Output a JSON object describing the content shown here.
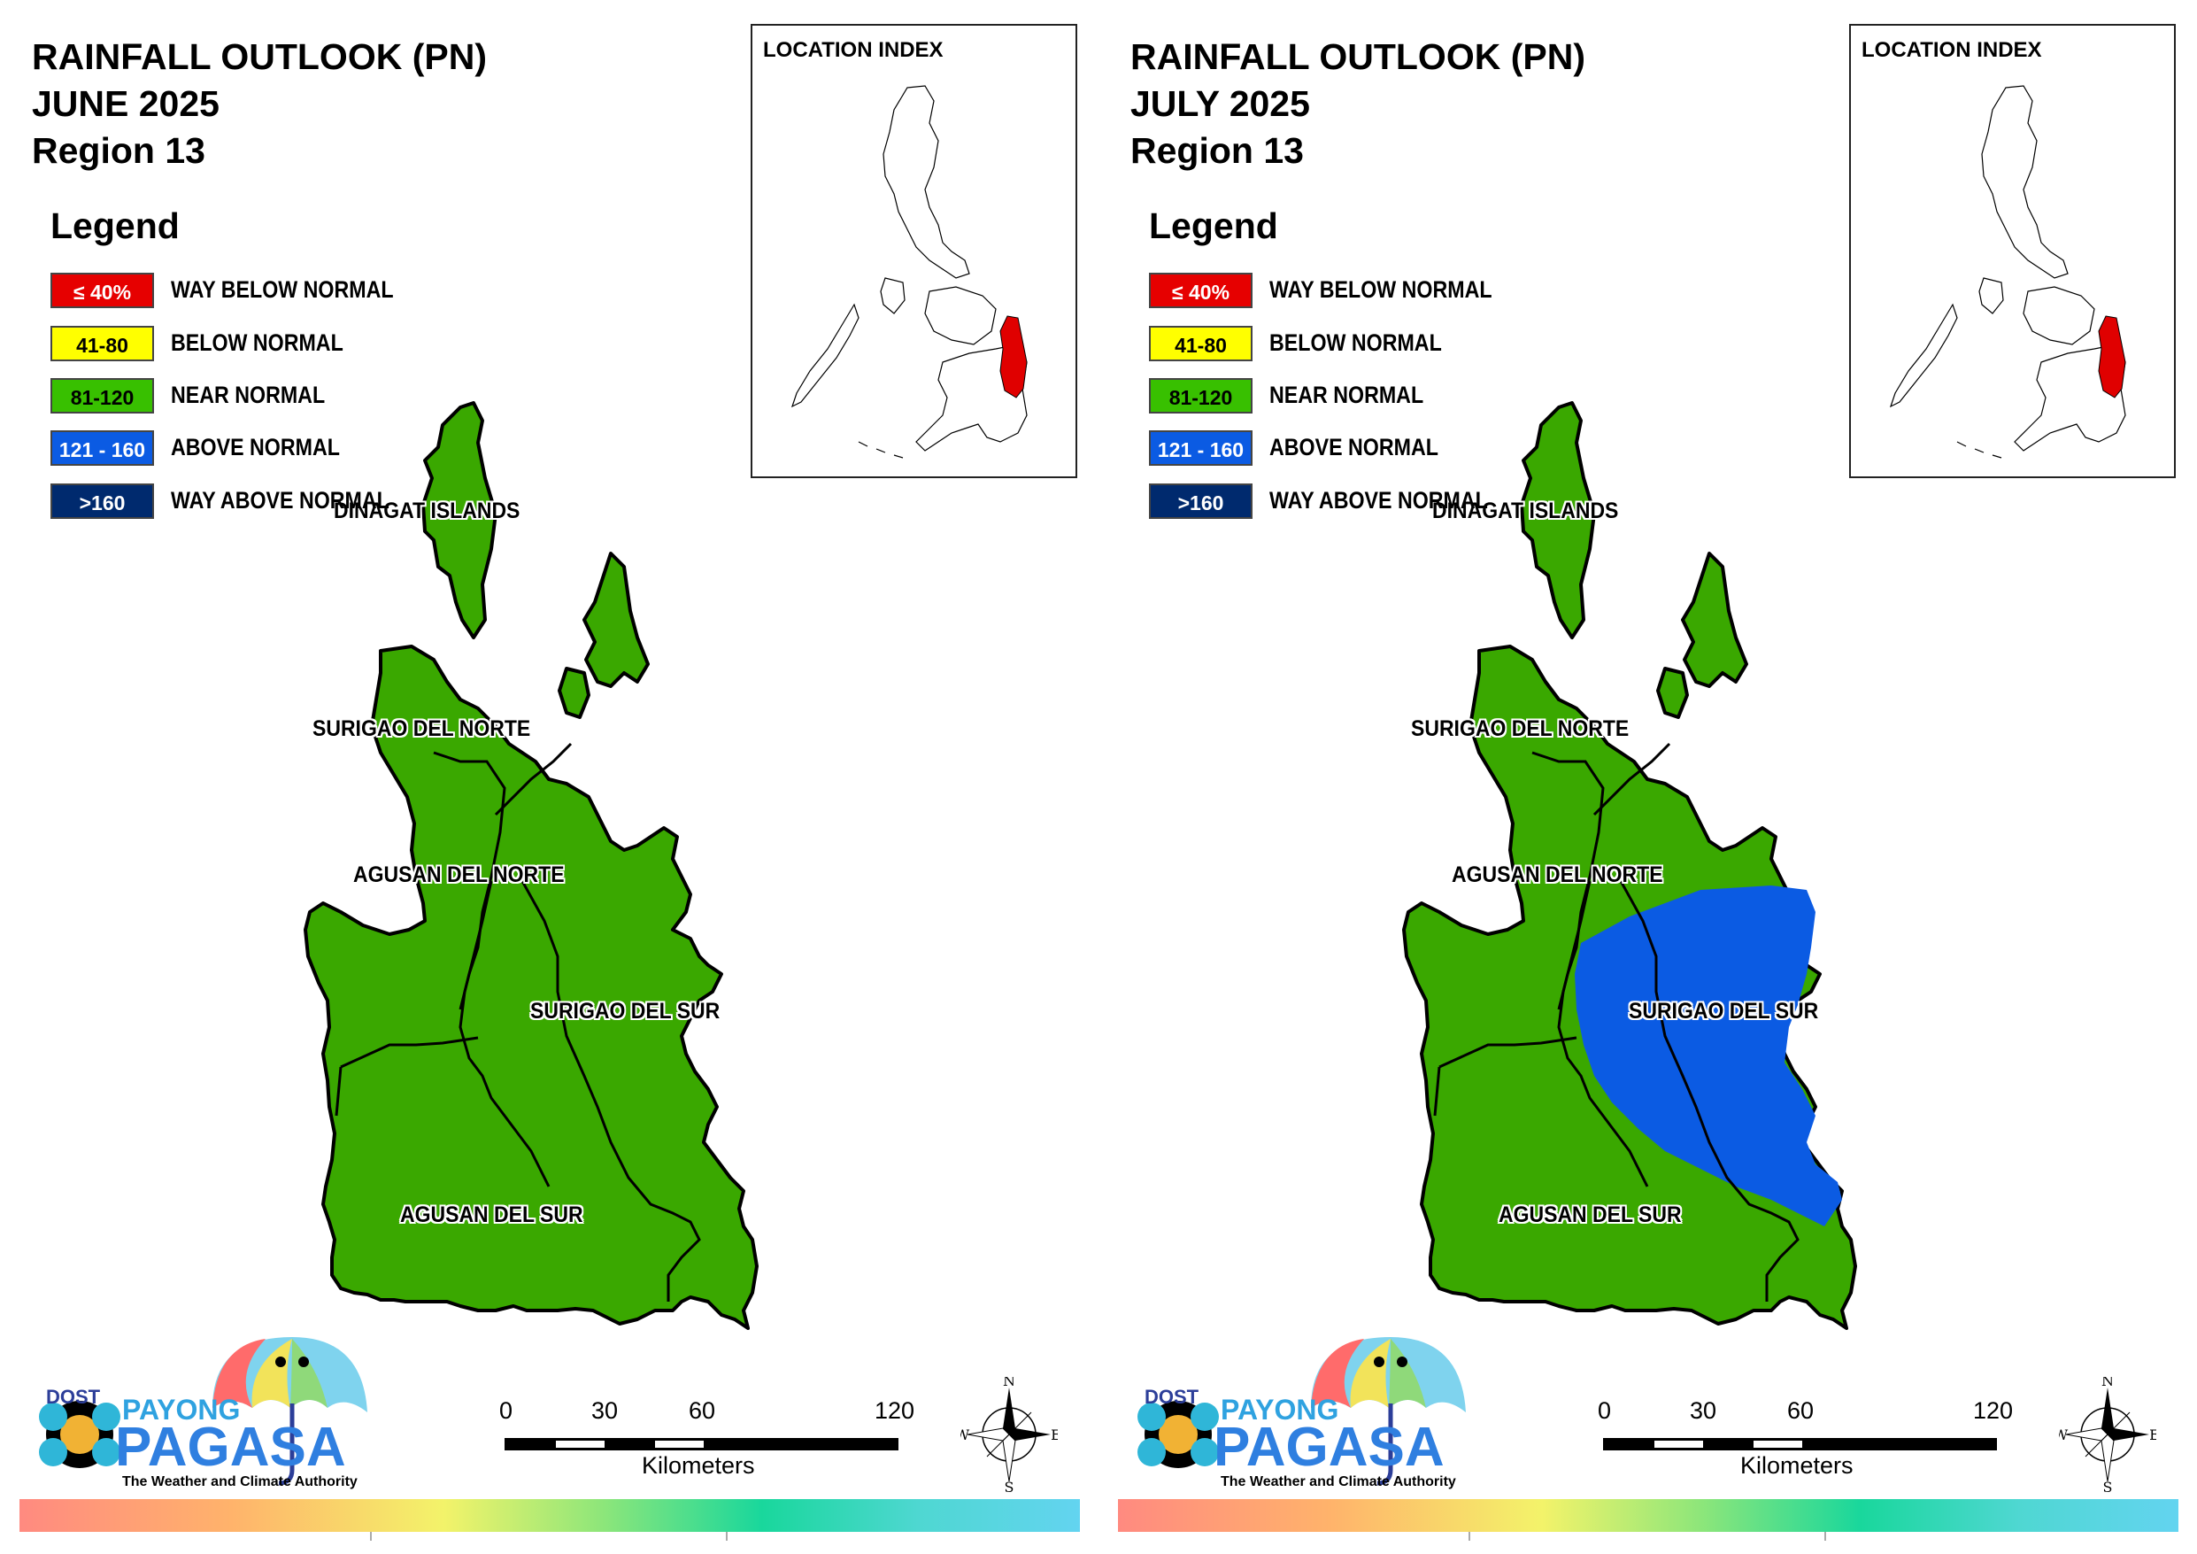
{
  "panels": [
    {
      "title_line1": "RAINFALL OUTLOOK (PN)",
      "title_line2": "JUNE 2025",
      "title_line3": "Region 13",
      "month": "JUNE 2025",
      "has_above_normal_zone": false
    },
    {
      "title_line1": "RAINFALL OUTLOOK (PN)",
      "title_line2": "JULY 2025",
      "title_line3": "Region 13",
      "month": "JULY 2025",
      "has_above_normal_zone": true
    }
  ],
  "legend": {
    "title": "Legend",
    "items": [
      {
        "range": "≤ 40%",
        "label": "WAY BELOW NORMAL",
        "color": "#e60000",
        "text_color": "#ffffff"
      },
      {
        "range": "41-80",
        "label": "BELOW NORMAL",
        "color": "#ffff00",
        "text_color": "#000000"
      },
      {
        "range": "81-120",
        "label": "NEAR NORMAL",
        "color": "#38c000",
        "text_color": "#000000"
      },
      {
        "range": "121 - 160",
        "label": "ABOVE NORMAL",
        "color": "#0b5be3",
        "text_color": "#ffffff"
      },
      {
        "range": ">160",
        "label": "WAY ABOVE NORMAL",
        "color": "#002a6e",
        "text_color": "#ffffff"
      }
    ]
  },
  "location_index": {
    "label": "LOCATION INDEX",
    "highlight_color": "#e00000"
  },
  "provinces": {
    "dinagat": "DINAGAT ISLANDS",
    "surigao_norte": "SURIGAO DEL NORTE",
    "agusan_norte": "AGUSAN DEL NORTE",
    "surigao_sur": "SURIGAO DEL SUR",
    "agusan_sur": "AGUSAN DEL SUR"
  },
  "colors": {
    "near_normal_fill": "#3aa800",
    "above_normal_fill": "#0b5be3"
  },
  "scale": {
    "ticks": [
      "0",
      "30",
      "60",
      "120"
    ],
    "unit": "Kilometers"
  },
  "compass": {
    "n": "N",
    "s": "S",
    "e": "E",
    "w": "W"
  },
  "logo": {
    "dost": "DOST",
    "payong": "PAYONG",
    "pagasa": "PAGASA",
    "tagline": "The Weather and Climate Authority"
  }
}
